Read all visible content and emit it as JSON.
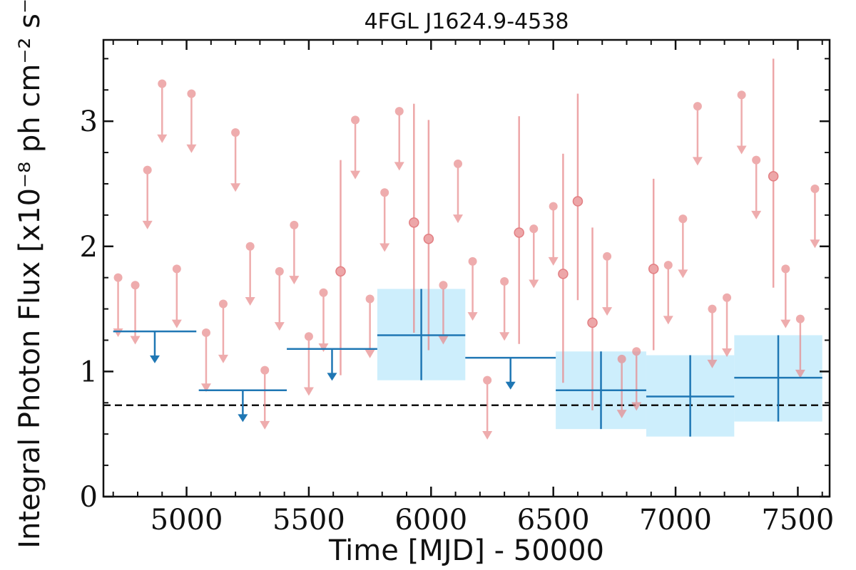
{
  "chart_data": {
    "type": "scatter",
    "title": "4FGL J1624.9-4538",
    "xlabel": "Time [MJD] - 50000",
    "ylabel": "Integral Photon Flux [x10⁻⁸ ph cm⁻² s⁻¹]",
    "xlim": [
      4660,
      7630
    ],
    "ylim": [
      0,
      3.65
    ],
    "xticks": [
      5000,
      5500,
      6000,
      6500,
      7000,
      7500
    ],
    "yticks": [
      0,
      1,
      2,
      3
    ],
    "grid": false,
    "reference_level": 0.73,
    "colors": {
      "short_bin": "#e8898b",
      "long_bin": "#1f77b4",
      "long_bin_band": "#cdeefc",
      "reference_line": "#111111"
    },
    "short_bin_upper_limits": [
      {
        "x": 4720,
        "y": 1.75
      },
      {
        "x": 4790,
        "y": 1.69
      },
      {
        "x": 4840,
        "y": 2.61
      },
      {
        "x": 4900,
        "y": 3.3
      },
      {
        "x": 4960,
        "y": 1.82
      },
      {
        "x": 5020,
        "y": 3.22
      },
      {
        "x": 5080,
        "y": 1.31
      },
      {
        "x": 5150,
        "y": 1.54
      },
      {
        "x": 5200,
        "y": 2.91
      },
      {
        "x": 5260,
        "y": 2.0
      },
      {
        "x": 5320,
        "y": 1.01
      },
      {
        "x": 5380,
        "y": 1.8
      },
      {
        "x": 5440,
        "y": 2.17
      },
      {
        "x": 5500,
        "y": 1.28
      },
      {
        "x": 5560,
        "y": 1.63
      },
      {
        "x": 5690,
        "y": 3.01
      },
      {
        "x": 5750,
        "y": 1.58
      },
      {
        "x": 5810,
        "y": 2.43
      },
      {
        "x": 5870,
        "y": 3.08
      },
      {
        "x": 6050,
        "y": 1.69
      },
      {
        "x": 6110,
        "y": 2.66
      },
      {
        "x": 6170,
        "y": 1.88
      },
      {
        "x": 6230,
        "y": 0.93
      },
      {
        "x": 6300,
        "y": 1.72
      },
      {
        "x": 6420,
        "y": 2.14
      },
      {
        "x": 6500,
        "y": 2.32
      },
      {
        "x": 6720,
        "y": 1.92
      },
      {
        "x": 6780,
        "y": 1.1
      },
      {
        "x": 6840,
        "y": 1.16
      },
      {
        "x": 6970,
        "y": 1.85
      },
      {
        "x": 7030,
        "y": 2.22
      },
      {
        "x": 7090,
        "y": 3.12
      },
      {
        "x": 7150,
        "y": 1.5
      },
      {
        "x": 7210,
        "y": 1.59
      },
      {
        "x": 7270,
        "y": 3.21
      },
      {
        "x": 7330,
        "y": 2.69
      },
      {
        "x": 7450,
        "y": 1.82
      },
      {
        "x": 7510,
        "y": 1.42
      },
      {
        "x": 7570,
        "y": 2.46
      }
    ],
    "short_bin_detections": [
      {
        "x": 5630,
        "y": 1.8,
        "ylow": 0.97,
        "yhigh": 2.69
      },
      {
        "x": 5930,
        "y": 2.19,
        "ylow": 1.31,
        "yhigh": 3.14
      },
      {
        "x": 5990,
        "y": 2.06,
        "ylow": 1.17,
        "yhigh": 3.01
      },
      {
        "x": 6360,
        "y": 2.11,
        "ylow": 1.22,
        "yhigh": 3.04
      },
      {
        "x": 6540,
        "y": 1.78,
        "ylow": 0.91,
        "yhigh": 2.74
      },
      {
        "x": 6600,
        "y": 2.36,
        "ylow": 1.57,
        "yhigh": 3.22
      },
      {
        "x": 6660,
        "y": 1.39,
        "ylow": 0.69,
        "yhigh": 2.15
      },
      {
        "x": 6910,
        "y": 1.82,
        "ylow": 1.17,
        "yhigh": 2.54
      },
      {
        "x": 7400,
        "y": 2.56,
        "ylow": 1.67,
        "yhigh": 3.5
      }
    ],
    "long_bin_upper_limits": [
      {
        "x0": 4700,
        "x1": 5040,
        "y": 1.32
      },
      {
        "x0": 5050,
        "x1": 5410,
        "y": 0.85
      },
      {
        "x0": 5410,
        "x1": 5780,
        "y": 1.18
      },
      {
        "x0": 6140,
        "x1": 6510,
        "y": 1.11
      }
    ],
    "long_bin_detections": [
      {
        "x0": 5780,
        "x1": 6140,
        "y": 1.29,
        "ylow": 0.93,
        "yhigh": 1.66
      },
      {
        "x0": 6510,
        "x1": 6880,
        "y": 0.85,
        "ylow": 0.54,
        "yhigh": 1.16
      },
      {
        "x0": 6880,
        "x1": 7240,
        "y": 0.8,
        "ylow": 0.48,
        "yhigh": 1.13
      },
      {
        "x0": 7240,
        "x1": 7600,
        "y": 0.95,
        "ylow": 0.6,
        "yhigh": 1.29
      }
    ]
  }
}
